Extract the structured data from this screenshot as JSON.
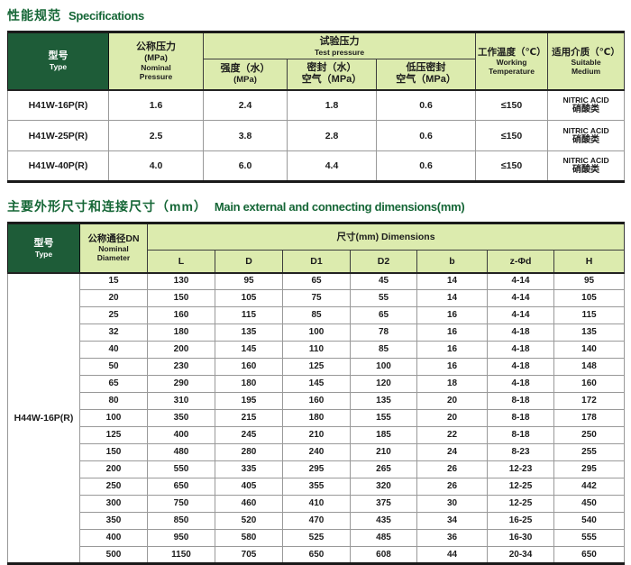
{
  "colors": {
    "dark_green": "#1e5c38",
    "light_green": "#dcebae",
    "title_green": "#156636"
  },
  "spec": {
    "title_zh": "性能规范",
    "title_en": "Specifications",
    "header": {
      "type_zh": "型号",
      "type_en": "Type",
      "nominal": [
        "公称压力",
        "(MPa)",
        "Nominal",
        "Pressure"
      ],
      "test_zh": "试验压力",
      "test_en": "Test pressure",
      "strength": [
        "强度（水）",
        "(MPa)"
      ],
      "seal": [
        "密封（水）",
        "空气（MPa）"
      ],
      "low_seal": [
        "低压密封",
        "空气（MPa）"
      ],
      "temp_zh": "工作温度（℃）",
      "temp_en": [
        "Working",
        "Temperature"
      ],
      "medium_zh": "适用介质（℃）",
      "medium_en": [
        "Suitable",
        "Medium"
      ]
    },
    "rows": [
      {
        "type": "H41W-16P(R)",
        "nominal": "1.6",
        "strength": "2.4",
        "seal": "1.8",
        "low_seal": "0.6",
        "temp": "≤150",
        "medium_line1": "NITRIC ACID",
        "medium_line2": "硝酸类"
      },
      {
        "type": "H41W-25P(R)",
        "nominal": "2.5",
        "strength": "3.8",
        "seal": "2.8",
        "low_seal": "0.6",
        "temp": "≤150",
        "medium_line1": "NITRIC ACID",
        "medium_line2": "硝酸类"
      },
      {
        "type": "H41W-40P(R)",
        "nominal": "4.0",
        "strength": "6.0",
        "seal": "4.4",
        "low_seal": "0.6",
        "temp": "≤150",
        "medium_line1": "NITRIC ACID",
        "medium_line2": "硝酸类"
      }
    ]
  },
  "dims": {
    "title_zh": "主要外形尺寸和连接尺寸（mm）",
    "title_en": "Main external and connecting dimensions(mm)",
    "header": {
      "type_zh": "型号",
      "type_en": "Type",
      "dn": [
        "公称通径DN",
        "Nominal",
        "Diameter"
      ],
      "band": "尺寸(mm) Dimensions",
      "cols": [
        "L",
        "D",
        "D1",
        "D2",
        "b",
        "z-Φd",
        "H"
      ]
    },
    "type_value": "H44W-16P(R)",
    "rows": [
      [
        "15",
        "130",
        "95",
        "65",
        "45",
        "14",
        "4-14",
        "95"
      ],
      [
        "20",
        "150",
        "105",
        "75",
        "55",
        "14",
        "4-14",
        "105"
      ],
      [
        "25",
        "160",
        "115",
        "85",
        "65",
        "16",
        "4-14",
        "115"
      ],
      [
        "32",
        "180",
        "135",
        "100",
        "78",
        "16",
        "4-18",
        "135"
      ],
      [
        "40",
        "200",
        "145",
        "110",
        "85",
        "16",
        "4-18",
        "140"
      ],
      [
        "50",
        "230",
        "160",
        "125",
        "100",
        "16",
        "4-18",
        "148"
      ],
      [
        "65",
        "290",
        "180",
        "145",
        "120",
        "18",
        "4-18",
        "160"
      ],
      [
        "80",
        "310",
        "195",
        "160",
        "135",
        "20",
        "8-18",
        "172"
      ],
      [
        "100",
        "350",
        "215",
        "180",
        "155",
        "20",
        "8-18",
        "178"
      ],
      [
        "125",
        "400",
        "245",
        "210",
        "185",
        "22",
        "8-18",
        "250"
      ],
      [
        "150",
        "480",
        "280",
        "240",
        "210",
        "24",
        "8-23",
        "255"
      ],
      [
        "200",
        "550",
        "335",
        "295",
        "265",
        "26",
        "12-23",
        "295"
      ],
      [
        "250",
        "650",
        "405",
        "355",
        "320",
        "26",
        "12-25",
        "442"
      ],
      [
        "300",
        "750",
        "460",
        "410",
        "375",
        "30",
        "12-25",
        "450"
      ],
      [
        "350",
        "850",
        "520",
        "470",
        "435",
        "34",
        "16-25",
        "540"
      ],
      [
        "400",
        "950",
        "580",
        "525",
        "485",
        "36",
        "16-30",
        "555"
      ],
      [
        "500",
        "1150",
        "705",
        "650",
        "608",
        "44",
        "20-34",
        "650"
      ]
    ]
  }
}
